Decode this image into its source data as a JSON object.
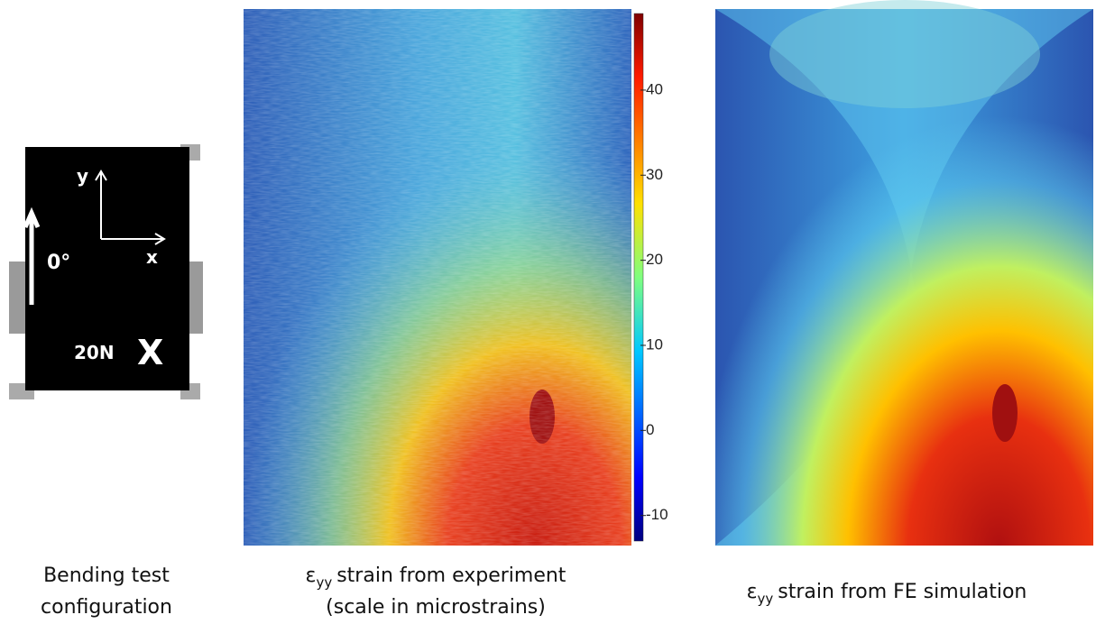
{
  "panels": [
    {
      "caption": [
        "Bending test",
        "configuration"
      ],
      "labels": {
        "y": "y",
        "x": "x",
        "angle": "0°",
        "load": "20N",
        "mark": "X"
      }
    },
    {
      "caption": {
        "symbol": "ε",
        "subscript": "yy",
        "text": "strain from experiment",
        "line2": "(scale in microstrains)"
      },
      "colorbar": {
        "lim": [
          -13,
          49
        ],
        "ticks": [
          -10,
          0,
          10,
          20,
          30,
          40
        ]
      }
    },
    {
      "caption": {
        "symbol": "ε",
        "subscript": "yy",
        "text": "strain from FE simulation"
      }
    }
  ]
}
